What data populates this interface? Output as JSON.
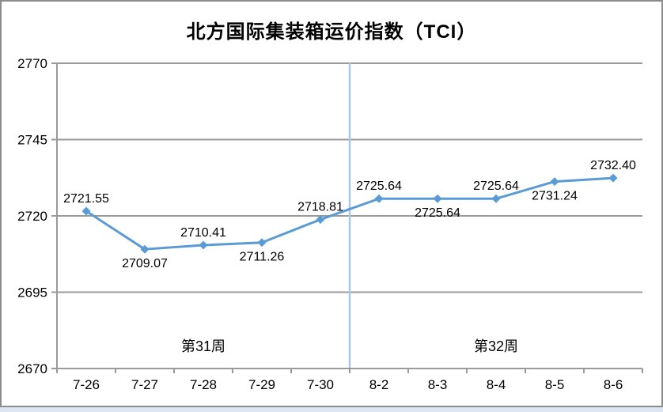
{
  "window": {
    "background": "#ffffff",
    "border_color": "#8c8c8c",
    "bottom_strip_color": "#dce6f1"
  },
  "chart_data": {
    "type": "line",
    "title": "北方国际集装箱运价指数（TCI）",
    "categories": [
      "7-26",
      "7-27",
      "7-28",
      "7-29",
      "7-30",
      "8-2",
      "8-3",
      "8-4",
      "8-5",
      "8-6"
    ],
    "series": [
      {
        "name": "TCI",
        "values": [
          2721.55,
          2709.07,
          2710.41,
          2711.26,
          2718.81,
          2725.64,
          2725.64,
          2725.64,
          2731.24,
          2732.4
        ],
        "color": "#5b9bd5",
        "marker": "diamond"
      }
    ],
    "data_labels": [
      "2721.55",
      "2709.07",
      "2710.41",
      "2711.26",
      "2718.81",
      "2725.64",
      "2725.64",
      "2725.64",
      "2731.24",
      "2732.40"
    ],
    "data_label_positions": [
      "above",
      "below",
      "above",
      "below",
      "above",
      "above",
      "below",
      "above",
      "below",
      "above"
    ],
    "xlabel": "",
    "ylabel": "",
    "ylim": [
      2670,
      2770
    ],
    "y_ticks": [
      2670,
      2695,
      2720,
      2745,
      2770
    ],
    "grid": "horizontal",
    "gridline_color": "#9a9a9a",
    "axis_color": "#9a9a9a",
    "legend_position": "none",
    "annotations": [
      {
        "text": "第31周",
        "category_index": 2,
        "position": "bottom"
      },
      {
        "text": "第32周",
        "category_index": 7,
        "position": "bottom"
      }
    ],
    "divider": {
      "between": [
        "7-30",
        "8-2"
      ],
      "color": "#a9c7e8"
    }
  }
}
